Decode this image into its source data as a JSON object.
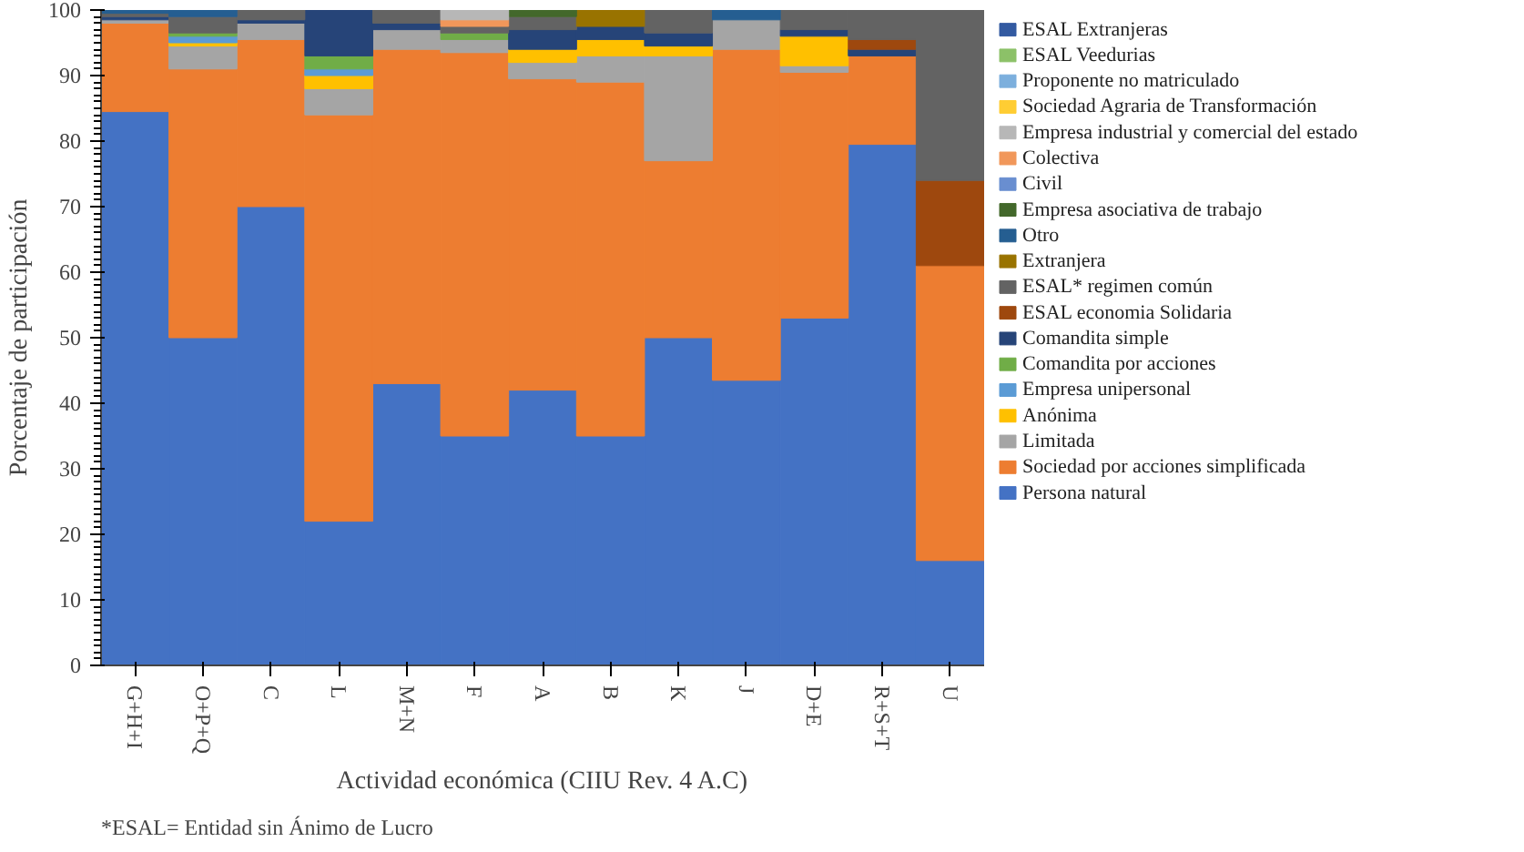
{
  "chart_data": {
    "type": "bar",
    "stacked": true,
    "xlabel": "Actividad económica (CIIU Rev. 4 A.C)",
    "ylabel": "Porcentaje de participación",
    "categories": [
      "G+H+I",
      "O+P+Q",
      "C",
      "L",
      "M+N",
      "F",
      "A",
      "B",
      "K",
      "J",
      "D+E",
      "R+S+T",
      "U"
    ],
    "ylim": [
      0,
      100
    ],
    "yticks": [
      0,
      10,
      20,
      30,
      40,
      50,
      60,
      70,
      80,
      90,
      100
    ],
    "legend": "right",
    "annotations": [
      "*ESAL= Entidad sin Ánimo de Lucro"
    ],
    "series": [
      {
        "name": "Persona natural",
        "color": "#4472c4",
        "values": [
          84.5,
          50,
          70,
          22,
          43,
          35,
          42,
          35,
          50,
          43.5,
          53,
          79.5,
          16
        ]
      },
      {
        "name": "Sociedad por acciones simplificada",
        "color": "#ed7d31",
        "values": [
          13.5,
          41,
          25.5,
          62,
          51,
          58.5,
          47.5,
          54,
          27,
          50.5,
          37.5,
          13.5,
          45
        ]
      },
      {
        "name": "Limitada",
        "color": "#a5a5a5",
        "values": [
          0.5,
          3.5,
          2.5,
          4,
          3,
          2,
          2.5,
          4,
          16,
          4.5,
          1,
          0,
          0
        ]
      },
      {
        "name": "Anónima",
        "color": "#ffc000",
        "values": [
          0,
          0.5,
          0,
          2,
          0,
          0,
          2,
          2.5,
          1.5,
          0,
          4.5,
          0,
          0
        ]
      },
      {
        "name": "Empresa unipersonal",
        "color": "#5b9bd5",
        "values": [
          0,
          1,
          0,
          1,
          0,
          0,
          0,
          0,
          0,
          0,
          0,
          0,
          0
        ]
      },
      {
        "name": "Comandita por acciones",
        "color": "#70ad47",
        "values": [
          0,
          0.5,
          0,
          2,
          0,
          1,
          0,
          0,
          0,
          0,
          0,
          0,
          0
        ]
      },
      {
        "name": "Comandita simple",
        "color": "#264478",
        "values": [
          0.5,
          0,
          0.5,
          7,
          1,
          0,
          3,
          2,
          2,
          0,
          1,
          1,
          0
        ]
      },
      {
        "name": "ESAL economia Solidaria",
        "color": "#9e480e",
        "values": [
          0,
          0,
          0,
          0,
          0,
          0,
          0,
          0,
          0,
          0,
          0,
          1.5,
          13
        ]
      },
      {
        "name": "ESAL* regimen común",
        "color": "#636363",
        "values": [
          0.5,
          2.5,
          1.5,
          0,
          2,
          1,
          2,
          0,
          3.5,
          0,
          3,
          4.5,
          26
        ]
      },
      {
        "name": "Extranjera",
        "color": "#997300",
        "values": [
          0,
          0,
          0,
          0,
          0,
          0,
          0,
          2.5,
          0,
          0,
          0,
          0,
          0
        ]
      },
      {
        "name": "Otro",
        "color": "#255e91",
        "values": [
          0.5,
          1,
          0,
          0,
          0,
          0,
          0,
          0,
          0,
          1.5,
          0,
          0,
          0
        ]
      },
      {
        "name": "Empresa asociativa de trabajo",
        "color": "#43682b",
        "values": [
          0,
          0,
          0,
          0,
          0,
          0,
          1,
          0,
          0,
          0,
          0,
          0,
          0
        ]
      },
      {
        "name": "Civil",
        "color": "#698ed0",
        "values": [
          0,
          0,
          0,
          0,
          0,
          0,
          0,
          0,
          0,
          0,
          0,
          0,
          0
        ]
      },
      {
        "name": "Colectiva",
        "color": "#f1975a",
        "values": [
          0,
          0,
          0,
          0,
          0,
          1,
          0,
          0,
          0,
          0,
          0,
          0,
          0
        ]
      },
      {
        "name": "Empresa industrial y comercial del estado",
        "color": "#b7b7b7",
        "values": [
          0,
          0,
          0,
          0,
          0,
          1.5,
          0,
          0,
          0,
          0,
          0,
          0,
          0
        ]
      },
      {
        "name": "Sociedad Agraria de Transformación",
        "color": "#ffcd33",
        "values": [
          0,
          0,
          0,
          0,
          0,
          0,
          0,
          0,
          0,
          0,
          0,
          0,
          0
        ]
      },
      {
        "name": "Proponente no matriculado",
        "color": "#7cafdd",
        "values": [
          0,
          0,
          0,
          0,
          0,
          0,
          0,
          0,
          0,
          0,
          0,
          0,
          0
        ]
      },
      {
        "name": "ESAL Veedurias",
        "color": "#8cc168",
        "values": [
          0,
          0,
          0,
          0,
          0,
          0,
          0,
          0,
          0,
          0,
          0,
          0,
          0
        ]
      },
      {
        "name": "ESAL Extranjeras",
        "color": "#335aa1",
        "values": [
          0,
          0,
          0,
          0,
          0,
          0,
          0,
          0,
          0,
          0,
          0,
          0,
          0
        ]
      }
    ]
  }
}
